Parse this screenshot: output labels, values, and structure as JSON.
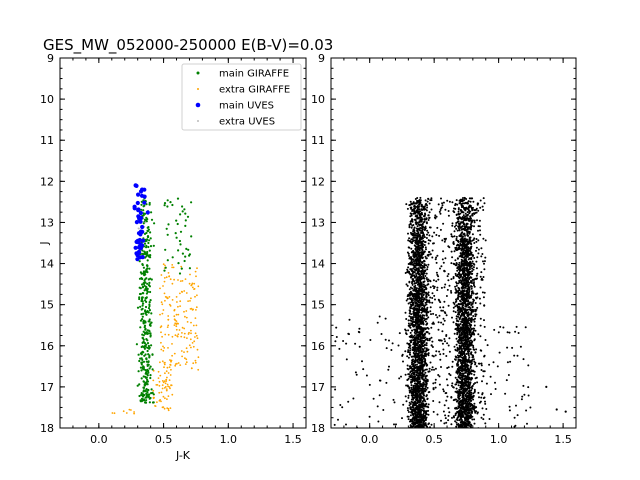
{
  "figure": {
    "title": "GES_MW_052000-250000 E(B-V)=0.03"
  },
  "chart_data": [
    {
      "type": "scatter",
      "xlabel": "J-K",
      "ylabel": "J",
      "xlim": [
        -0.3,
        1.6
      ],
      "ylim": [
        18,
        9
      ],
      "y_inverted": true,
      "x_ticks": [
        "0.0",
        "0.5",
        "1.0",
        "1.5"
      ],
      "y_ticks": [
        "9",
        "10",
        "11",
        "12",
        "13",
        "14",
        "15",
        "16",
        "17",
        "18"
      ],
      "legend_position": "top-right",
      "series": [
        {
          "name": "main GIRAFFE",
          "color": "#008000",
          "marker": "dot",
          "region": {
            "x": [
              0.18,
              0.72
            ],
            "y": [
              12.2,
              17.5
            ]
          }
        },
        {
          "name": "extra GIRAFFE",
          "color": "#ffa500",
          "marker": "small-dot",
          "region": {
            "x": [
              0.45,
              0.78
            ],
            "y": [
              14.0,
              17.6
            ]
          }
        },
        {
          "name": "main UVES",
          "color": "#0000ff",
          "marker": "dot",
          "region": {
            "x": [
              0.22,
              0.45
            ],
            "y": [
              12.0,
              13.9
            ]
          }
        },
        {
          "name": "extra UVES",
          "color": "#bbbbbb",
          "marker": "small-dot",
          "region": {
            "x": [
              0.3,
              0.4
            ],
            "y": [
              13.0,
              13.2
            ]
          }
        }
      ]
    },
    {
      "type": "scatter",
      "xlabel": "",
      "ylabel": "",
      "xlim": [
        -0.3,
        1.6
      ],
      "ylim": [
        18,
        9
      ],
      "y_inverted": true,
      "x_ticks": [
        "0.0",
        "0.5",
        "1.0",
        "1.5"
      ],
      "y_ticks": [
        "9",
        "10",
        "11",
        "12",
        "13",
        "14",
        "15",
        "16",
        "17",
        "18"
      ],
      "series": [
        {
          "color": "#000000",
          "marker": "dot",
          "region": {
            "x": [
              -0.3,
              1.5
            ],
            "y": [
              12.0,
              18.0
            ]
          },
          "dense_region": {
            "x": [
              0.25,
              0.9
            ],
            "y": [
              12.3,
              18.0
            ]
          }
        }
      ]
    }
  ]
}
